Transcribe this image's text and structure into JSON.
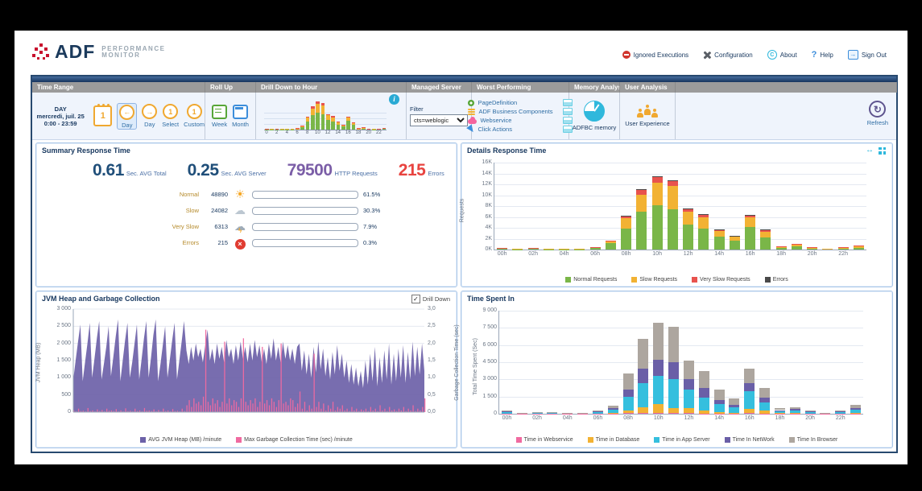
{
  "header": {
    "logo": {
      "brand": "ADF",
      "line1": "PERFORMANCE",
      "line2": "MONITOR"
    },
    "links": [
      {
        "label": "Ignored Executions",
        "icon": "no-entry-icon"
      },
      {
        "label": "Configuration",
        "icon": "wrench-icon"
      },
      {
        "label": "About",
        "icon": "copyright-icon"
      },
      {
        "label": "Help",
        "icon": "question-icon"
      },
      {
        "label": "Sign Out",
        "icon": "signout-icon"
      }
    ]
  },
  "icons": {
    "arrow_left": "←",
    "arrow_right": "→",
    "one": "1",
    "refresh": "↻",
    "resize_h": "↔",
    "check": "✓",
    "cross": "×",
    "copyright": "C",
    "question": "?",
    "info": "i",
    "sun": "☀",
    "cloud": "☁",
    "bolt": "ϟ",
    "signout_arrow": "→"
  },
  "toolbar": {
    "time_range": {
      "header": "Time Range",
      "day": "DAY",
      "date": "mercredi, juil. 25",
      "hours": "0:00 - 23:59",
      "calendar_number": "1",
      "buttons": [
        {
          "label": "Day",
          "glyph": "←"
        },
        {
          "label": "Day",
          "glyph": "→"
        },
        {
          "label": "Select",
          "glyph": "1"
        },
        {
          "label": "Custom",
          "glyph": "1"
        }
      ]
    },
    "roll_up": {
      "header": "Roll Up",
      "buttons": [
        {
          "label": "Week"
        },
        {
          "label": "Month"
        }
      ]
    },
    "drill_down": {
      "header": "Drill Down to Hour",
      "axis": [
        "0",
        "2",
        "4",
        "6",
        "8",
        "10",
        "12",
        "14",
        "16",
        "18",
        "20",
        "22"
      ]
    },
    "managed_server": {
      "header": "Managed Server",
      "filter_label": "Filter",
      "filter_value": "cts=weblogic"
    },
    "worst": {
      "header": "Worst Performing",
      "items": [
        {
          "label": "PageDefinition",
          "icon": "gear-icon"
        },
        {
          "label": "ADF Business Components",
          "icon": "layers-icon"
        },
        {
          "label": "Webservice",
          "icon": "cloud-icon"
        },
        {
          "label": "Click Actions",
          "icon": "cursor-icon"
        }
      ]
    },
    "memory": {
      "header": "Memory Analysis",
      "label": "ADFBC memory",
      "icon": "pie-icon"
    },
    "user": {
      "header": "User Analysis",
      "label": "User Experience",
      "icon": "people-icon"
    },
    "refresh_label": "Refresh"
  },
  "summary": {
    "title": "Summary Response Time",
    "stats": [
      {
        "value": "0.61",
        "label": "Sec. AVG Total",
        "color": "#1F4E79"
      },
      {
        "value": "0.25",
        "label": "Sec. AVG Server",
        "color": "#1F4E79"
      },
      {
        "value": "79500",
        "label": "HTTP Requests",
        "color": "#7B5EA7"
      },
      {
        "value": "215",
        "label": "Errors",
        "color": "#E8433F"
      }
    ],
    "rows": [
      {
        "label": "Normal",
        "count": "48890",
        "icon": "sun-icon",
        "pct": 61.5,
        "pct_label": "61.5%",
        "color": "#7AB648"
      },
      {
        "label": "Slow",
        "count": "24082",
        "icon": "rain-cloud-icon",
        "pct": 30.3,
        "pct_label": "30.3%",
        "color": "#F2B233"
      },
      {
        "label": "Very Slow",
        "count": "6313",
        "icon": "storm-cloud-icon",
        "pct": 7.9,
        "pct_label": "7.9%",
        "color": "#E8534E"
      },
      {
        "label": "Errors",
        "count": "215",
        "icon": "error-icon",
        "pct": 0.3,
        "pct_label": "0.3%",
        "color": "#E8534E"
      }
    ]
  },
  "panels": {
    "details_title": "Details Response Time",
    "jvm_title": "JVM Heap and Garbage Collection",
    "jvm_drilldown_label": "Drill Down",
    "timespent_title": "Time Spent In"
  },
  "chart_data": [
    {
      "id": "details",
      "type": "bar",
      "stacked": true,
      "title": "Details Response Time",
      "ylabel": "Requests",
      "ylim": [
        0,
        16
      ],
      "yticks": [
        "0K",
        "2K",
        "4K",
        "6K",
        "8K",
        "10K",
        "12K",
        "14K",
        "16K"
      ],
      "x_labels": [
        "00h",
        "02h",
        "04h",
        "06h",
        "08h",
        "10h",
        "12h",
        "14h",
        "16h",
        "18h",
        "20h",
        "22h"
      ],
      "grid": true,
      "legend_position": "bottom",
      "series": [
        {
          "name": "Normal Requests",
          "color": "#7AB648",
          "values": [
            0.15,
            0.05,
            0.1,
            0.05,
            0.06,
            0.06,
            0.35,
            1.25,
            3.9,
            6.9,
            8.2,
            7.4,
            4.6,
            3.8,
            2.3,
            1.6,
            4.2,
            2.2,
            0.35,
            0.6,
            0.2,
            0.1,
            0.2,
            0.3
          ]
        },
        {
          "name": "Slow Requests",
          "color": "#F2B233",
          "values": [
            0.1,
            0.02,
            0.13,
            0.02,
            0.03,
            0.03,
            0.08,
            0.35,
            1.85,
            3.2,
            4.1,
            4.3,
            2.3,
            2.1,
            1.1,
            0.7,
            1.8,
            1.1,
            0.2,
            0.35,
            0.12,
            0.05,
            0.12,
            0.35
          ]
        },
        {
          "name": "Very Slow Requests",
          "color": "#E8534E",
          "values": [
            0.02,
            0,
            0.02,
            0,
            0,
            0,
            0.02,
            0.05,
            0.45,
            0.9,
            1.1,
            0.9,
            0.6,
            0.5,
            0.3,
            0.2,
            0.3,
            0.3,
            0.05,
            0.05,
            0.03,
            0,
            0.03,
            0.15
          ]
        },
        {
          "name": "Errors",
          "color": "#4A4A4A",
          "values": [
            0,
            0,
            0,
            0,
            0,
            0,
            0,
            0,
            0.02,
            0.03,
            0.03,
            0.03,
            0.02,
            0.02,
            0.01,
            0.01,
            0.02,
            0.01,
            0,
            0,
            0,
            0,
            0,
            0
          ]
        }
      ]
    },
    {
      "id": "jvm",
      "type": "area",
      "title": "JVM Heap and Garbage Collection",
      "left_axis": {
        "label": "JVM Heap (MB)",
        "max": 3000,
        "ticks": [
          "0",
          "500",
          "1 000",
          "1 500",
          "2 000",
          "2 500",
          "3 000"
        ]
      },
      "right_axis": {
        "label": "Garbage Collection Time (sec)",
        "max": 3,
        "ticks": [
          "0,0",
          "0,5",
          "1,0",
          "1,5",
          "2,0",
          "2,5",
          "3,0"
        ]
      },
      "legend": [
        {
          "name": "AVG JVM Heap (MB) /minute",
          "color": "#6C61A8"
        },
        {
          "name": "Max Garbage Collection Time (sec) /minute",
          "color": "#F06AA0"
        }
      ],
      "heap": [
        950,
        1500,
        2050,
        2550,
        900,
        1450,
        2000,
        2600,
        1000,
        1550,
        2150,
        2650,
        950,
        1400,
        1900,
        2500,
        1050,
        1600,
        2200,
        2700,
        900,
        1500,
        2100,
        2600,
        1000,
        1450,
        2000,
        2550,
        950,
        1550,
        2150,
        2650,
        1000,
        1600,
        2250,
        2700,
        900,
        1400,
        1950,
        2500,
        1000,
        1550,
        2100,
        2600,
        950,
        1500,
        2050,
        2650,
        1800,
        1400,
        1900,
        1500,
        2000,
        1600,
        1850,
        1450,
        1950,
        2400,
        1500,
        1850,
        1400,
        2000,
        1550,
        1900,
        1450,
        2100,
        1600,
        1850,
        1400,
        1950,
        1500,
        2050,
        1550,
        1900,
        1450,
        2000,
        1500,
        2100,
        1600,
        1950,
        1450,
        1850,
        1400,
        2000,
        1550,
        2150,
        1500,
        1900,
        1450,
        2050,
        1550,
        1950,
        1500,
        1850,
        1400,
        1900,
        2000,
        1200,
        1800,
        1100,
        1700,
        1000,
        1900,
        1150,
        2050,
        1250,
        1850,
        1050,
        1600,
        950,
        1750,
        1100,
        1950,
        1200,
        1700,
        1000,
        1500,
        850,
        1400,
        800,
        1300,
        750,
        1200,
        700,
        1500,
        800,
        1700,
        900,
        1900,
        750,
        1600,
        850,
        1800,
        950,
        2000,
        800,
        1700,
        900,
        1850,
        1000,
        1950,
        850,
        1750,
        950,
        2050,
        1050,
        1900,
        1100,
        2000,
        1200
      ],
      "gc": [
        0.05,
        0.02,
        0.1,
        0.03,
        0.04,
        0.02,
        0.12,
        0.03,
        0.05,
        0.02,
        0.08,
        0.03,
        0.06,
        0.02,
        0.1,
        0.04,
        0.05,
        0.03,
        0.09,
        0.02,
        0.05,
        0.02,
        0.11,
        0.03,
        0.04,
        0.02,
        0.1,
        0.03,
        0.05,
        0.02,
        0.12,
        0.04,
        0.05,
        0.03,
        0.08,
        0.02,
        0.06,
        0.02,
        0.1,
        0.03,
        0.05,
        0.02,
        0.09,
        0.03,
        0.04,
        0.02,
        0.1,
        0.03,
        0.2,
        0.35,
        0.15,
        0.4,
        0.25,
        0.3,
        0.2,
        0.45,
        2.4,
        0.3,
        0.2,
        0.4,
        0.25,
        0.35,
        0.15,
        0.3,
        2.05,
        0.25,
        0.4,
        0.2,
        0.35,
        0.3,
        0.15,
        0.4,
        2.15,
        0.3,
        0.2,
        0.35,
        0.25,
        0.4,
        0.15,
        0.3,
        1.9,
        0.25,
        0.35,
        0.2,
        0.4,
        0.3,
        0.15,
        0.35,
        2.0,
        0.25,
        0.3,
        0.2,
        0.4,
        0.35,
        0.15,
        0.25,
        0.6,
        0.1,
        0.3,
        0.05,
        0.2,
        0.1,
        1.7,
        0.15,
        0.3,
        0.1,
        0.25,
        0.05,
        0.2,
        0.1,
        0.3,
        0.05,
        0.15,
        0.1,
        0.2,
        0.05,
        0.1,
        0.03,
        0.15,
        0.05,
        0.1,
        0.03,
        0.08,
        0.05,
        0.1,
        0.03,
        0.15,
        0.05,
        0.1,
        0.03,
        0.2,
        0.05,
        0.1,
        0.03,
        0.15,
        0.05,
        0.08,
        0.03,
        0.1,
        0.05,
        0.15,
        0.03,
        0.1,
        0.05,
        0.2,
        0.03,
        0.1,
        0.05,
        0.15,
        0.4
      ]
    },
    {
      "id": "timespent",
      "type": "bar",
      "stacked": true,
      "title": "Time Spent In",
      "ylabel": "Total Time Spent (Sec)",
      "ylim": [
        0,
        9000
      ],
      "yticks": [
        "0",
        "1 500",
        "3 000",
        "4 500",
        "6 000",
        "7 500",
        "9 000"
      ],
      "x_labels": [
        "00h",
        "02h",
        "04h",
        "06h",
        "08h",
        "10h",
        "12h",
        "14h",
        "16h",
        "18h",
        "20h",
        "22h"
      ],
      "grid": true,
      "legend_position": "bottom",
      "series": [
        {
          "name": "Time in Webservice",
          "color": "#F06AA0",
          "values": [
            10,
            2,
            5,
            2,
            2,
            2,
            8,
            15,
            40,
            60,
            80,
            70,
            45,
            35,
            20,
            15,
            50,
            30,
            8,
            10,
            5,
            2,
            5,
            10
          ]
        },
        {
          "name": "Time in Database",
          "color": "#F2B233",
          "values": [
            15,
            2,
            8,
            3,
            2,
            3,
            15,
            60,
            250,
            500,
            750,
            450,
            450,
            250,
            150,
            80,
            350,
            250,
            30,
            40,
            15,
            5,
            15,
            40
          ]
        },
        {
          "name": "Time in App Server",
          "color": "#35BFDE",
          "values": [
            150,
            15,
            60,
            40,
            15,
            25,
            120,
            300,
            1200,
            2100,
            2450,
            2500,
            1650,
            1150,
            650,
            500,
            1550,
            700,
            200,
            250,
            120,
            40,
            120,
            300
          ]
        },
        {
          "name": "Time In NetWork",
          "color": "#6A5FA7",
          "values": [
            50,
            5,
            25,
            80,
            8,
            12,
            60,
            150,
            600,
            1300,
            1450,
            1500,
            900,
            850,
            350,
            200,
            700,
            450,
            80,
            100,
            50,
            20,
            50,
            150
          ]
        },
        {
          "name": "Time In Browser",
          "color": "#ADA69F",
          "values": [
            60,
            8,
            30,
            40,
            8,
            15,
            80,
            200,
            1450,
            2600,
            3200,
            3100,
            1600,
            1450,
            950,
            550,
            1300,
            800,
            150,
            180,
            80,
            40,
            80,
            300
          ]
        }
      ]
    }
  ]
}
